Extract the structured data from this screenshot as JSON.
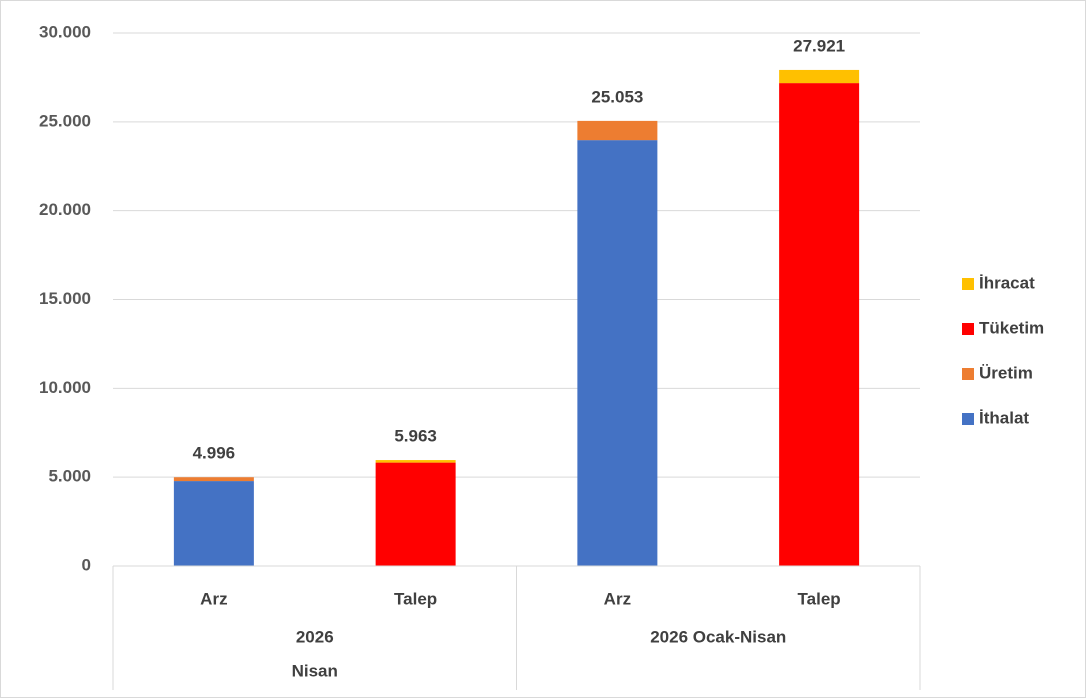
{
  "chart_data": {
    "type": "stacked_bar",
    "groups": [
      {
        "label": [
          "2026",
          "Nisan"
        ],
        "categories": [
          "Arz",
          "Talep"
        ]
      },
      {
        "label": [
          "2026 Ocak-Nisan"
        ],
        "categories": [
          "Arz",
          "Talep"
        ]
      }
    ],
    "series": [
      {
        "name": "İthalat",
        "color": "#4472c4",
        "values": [
          4780,
          null,
          23970,
          null
        ]
      },
      {
        "name": "Üretim",
        "color": "#ed7d31",
        "values": [
          216,
          null,
          1083,
          null
        ]
      },
      {
        "name": "Tüketim",
        "color": "#ff0000",
        "values": [
          null,
          5820,
          null,
          27180
        ]
      },
      {
        "name": "İhracat",
        "color": "#ffc000",
        "values": [
          null,
          143,
          null,
          741
        ]
      }
    ],
    "totals": {
      "values": [
        4996,
        5963,
        25053,
        27921
      ],
      "value_labels": [
        "4.996",
        "5.963",
        "25.053",
        "27.921"
      ]
    },
    "ylim": [
      0,
      30000
    ],
    "yticks": [
      0,
      {
        "value": 5000,
        "label": "5.000"
      },
      {
        "value": 10000,
        "label": "10.000"
      },
      {
        "value": 15000,
        "label": "15.000"
      },
      {
        "value": 20000,
        "label": "20.000"
      },
      {
        "value": 25000,
        "label": "25.000"
      },
      {
        "value": 30000,
        "label": "30.000"
      }
    ],
    "grid": true,
    "legend": "right"
  }
}
